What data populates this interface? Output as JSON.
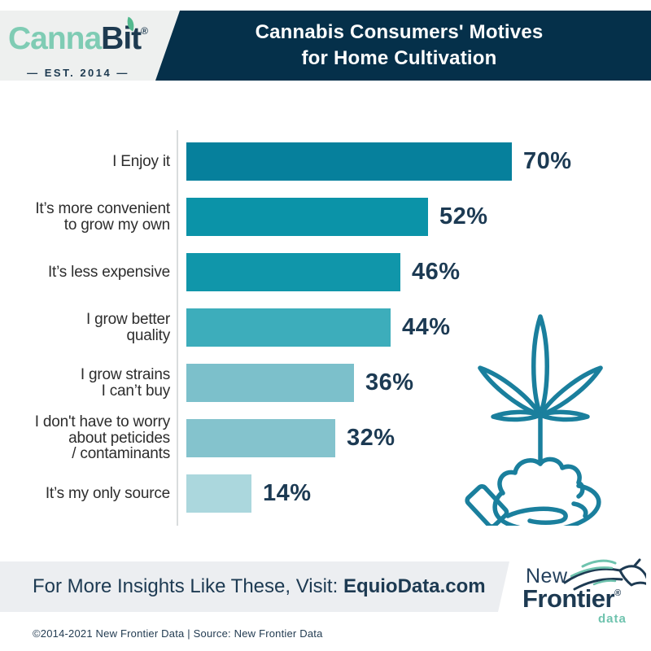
{
  "header": {
    "brand": {
      "name_part1": "Canna",
      "name_part2": "Bit",
      "registered_mark": "®",
      "established": "— EST. 2014 —"
    },
    "title_line1": "Cannabis Consumers' Motives",
    "title_line2": "for Home Cultivation"
  },
  "chart_data": {
    "type": "bar",
    "orientation": "horizontal",
    "title": "Cannabis Consumers' Motives for Home Cultivation",
    "categories": [
      "I Enjoy it",
      "It’s more convenient\nto grow my own",
      "It’s less expensive",
      "I grow better\nquality",
      "I grow strains\nI can’t buy",
      "I don't have to worry\nabout peticides\n/ contaminants",
      "It’s my only source"
    ],
    "values": [
      70,
      52,
      46,
      44,
      36,
      32,
      14
    ],
    "value_labels": [
      "70%",
      "52%",
      "46%",
      "44%",
      "36%",
      "32%",
      "14%"
    ],
    "unit": "%",
    "xlim": [
      0,
      70
    ],
    "gridlines": false,
    "legend": false,
    "bar_colors": [
      "#06809c",
      "#0b93a8",
      "#1096aa",
      "#3dadbb",
      "#7cc0cb",
      "#84c3cd",
      "#abd7dd"
    ]
  },
  "illustration": {
    "name": "hand-holding-soil-with-cannabis-sprout",
    "color": "#1a7f9d"
  },
  "footer": {
    "cta_prefix": "For More Insights Like These, Visit: ",
    "cta_domain": "EquioData.com",
    "logo": {
      "line1": "New",
      "line2": "Frontier",
      "registered_mark": "®",
      "line3": "data"
    },
    "copyright": "©2014-2021  New Frontier Data | Source: New Frontier Data"
  },
  "colors": {
    "header_navy": "#05304a",
    "brand_navy": "#1d3a50",
    "brand_mint": "#7fccb4",
    "value_text_navy": "#1c3a53",
    "band_gray": "#eceef1",
    "illustration_teal": "#1a7f9d"
  }
}
